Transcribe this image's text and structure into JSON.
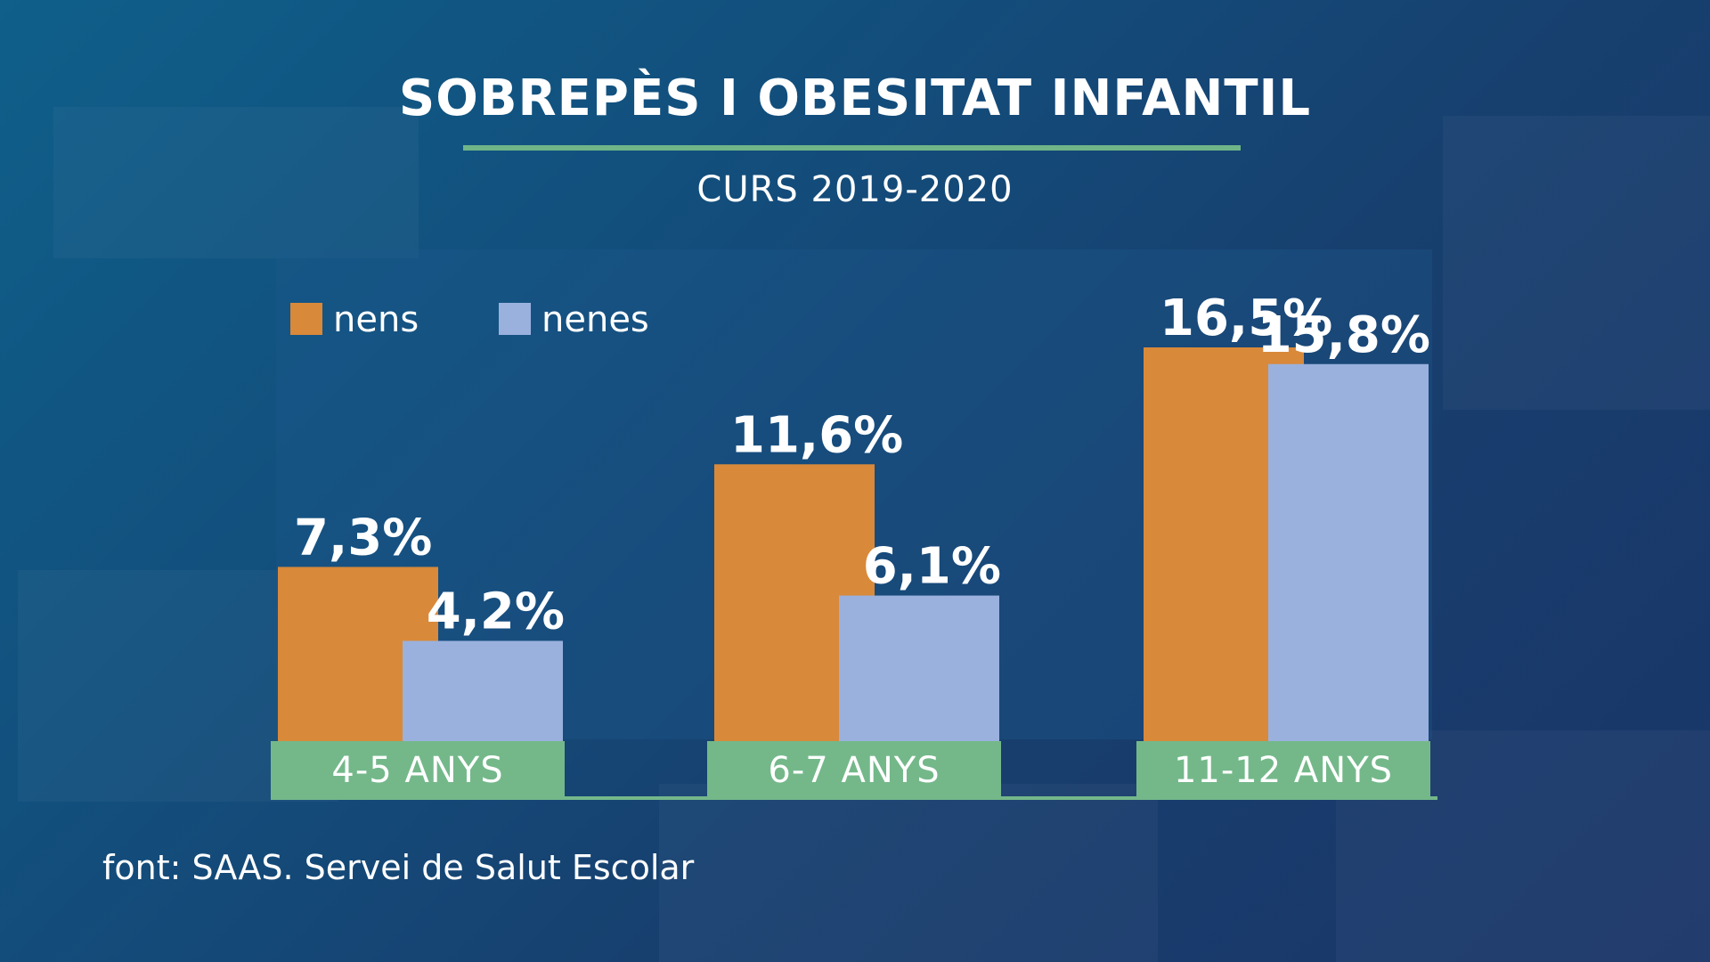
{
  "title": "SOBREPÈS I OBESITAT INFANTIL",
  "subtitle": "CURS 2019-2020",
  "source": "font: SAAS. Servei de Salut Escolar",
  "colors": {
    "nens": "#d9893a",
    "nenes": "#9ab1dd",
    "category_band": "#74b88a",
    "rule": "#6fb587"
  },
  "chart_data": {
    "type": "bar",
    "categories": [
      "4-5 ANYS",
      "6-7 ANYS",
      "11-12 ANYS"
    ],
    "series": [
      {
        "name": "nens",
        "values": [
          7.3,
          11.6,
          16.5
        ],
        "labels": [
          "7,3%",
          "11,6%",
          "16,5%"
        ]
      },
      {
        "name": "nenes",
        "values": [
          4.2,
          6.1,
          15.8
        ],
        "labels": [
          "4,2%",
          "6,1%",
          "15,8%"
        ]
      }
    ],
    "ylim": [
      0,
      20
    ],
    "grid": false,
    "legend": "top-left",
    "title": "SOBREPÈS I OBESITAT INFANTIL",
    "subtitle": "CURS 2019-2020"
  }
}
